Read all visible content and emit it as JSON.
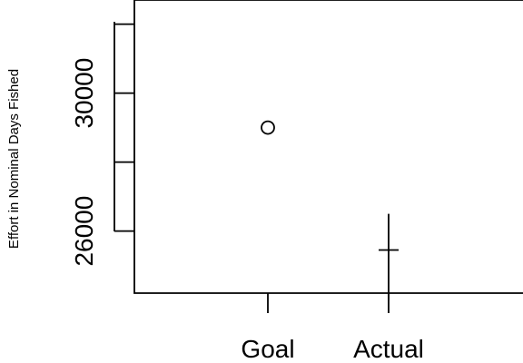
{
  "chart_data": {
    "type": "scatter",
    "title": "",
    "xlabel": "",
    "ylabel": "Effort in Nominal Days Fished",
    "categories": [
      "Goal",
      "Actual"
    ],
    "y_ticks": [
      26000,
      28000,
      30000,
      32000
    ],
    "y_tick_labels": [
      "26000",
      "",
      "30000",
      ""
    ],
    "ylim": [
      24200,
      32700
    ],
    "grid": false,
    "points": [
      {
        "category": "Goal",
        "y": 29000,
        "marker": "circle"
      },
      {
        "category": "Actual",
        "y": 25450,
        "marker": "plus",
        "interval": [
          24000,
          26500
        ]
      }
    ]
  }
}
